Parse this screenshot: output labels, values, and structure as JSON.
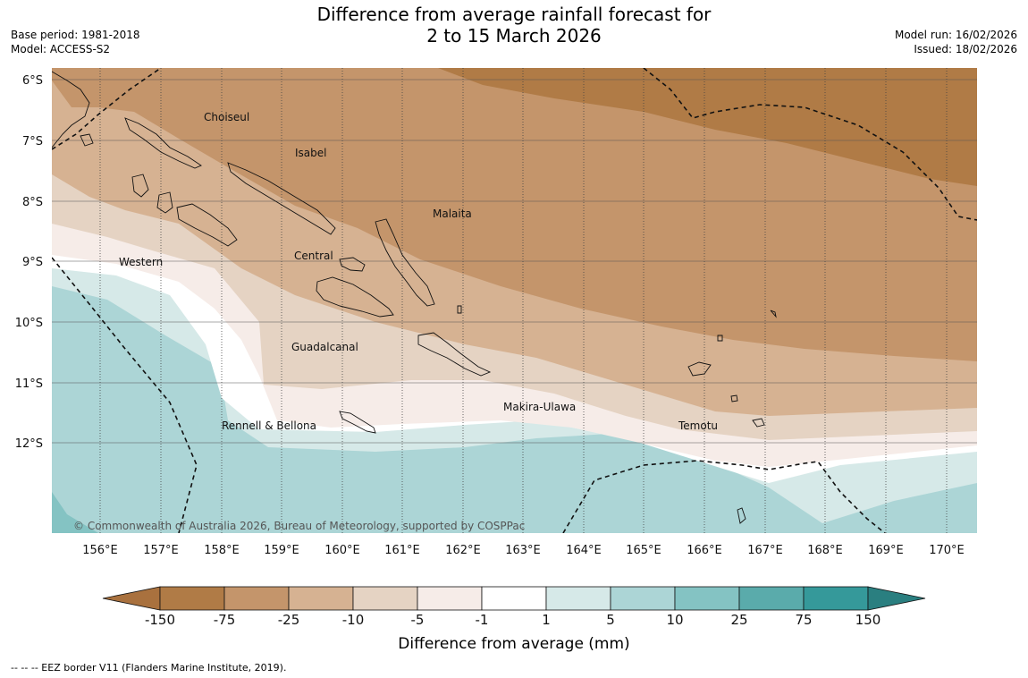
{
  "header": {
    "title_line1": "Difference from average rainfall forecast for",
    "title_line2": "2 to 15 March 2026",
    "base_period": "Base period: 1981-2018",
    "model": "Model: ACCESS-S2",
    "model_run": "Model run: 16/02/2026",
    "issued": "Issued: 18/02/2026"
  },
  "map": {
    "lat_labels": [
      "6°S",
      "7°S",
      "8°S",
      "9°S",
      "10°S",
      "11°S",
      "12°S"
    ],
    "lon_labels": [
      "156°E",
      "157°E",
      "158°E",
      "159°E",
      "160°E",
      "161°E",
      "162°E",
      "163°E",
      "164°E",
      "165°E",
      "166°E",
      "167°E",
      "168°E",
      "169°E",
      "170°E"
    ],
    "places": [
      {
        "name": "Choiseul"
      },
      {
        "name": "Isabel"
      },
      {
        "name": "Malaita"
      },
      {
        "name": "Western"
      },
      {
        "name": "Central"
      },
      {
        "name": "Guadalcanal"
      },
      {
        "name": "Makira-Ulawa"
      },
      {
        "name": "Rennell & Bellona"
      },
      {
        "name": "Temotu"
      }
    ],
    "copyright": "© Commonwealth of Australia 2026, Bureau of Meteorology, supported by COSPPac"
  },
  "colorbar": {
    "labels": [
      "-150",
      "-75",
      "-25",
      "-10",
      "-5",
      "-1",
      "1",
      "5",
      "10",
      "25",
      "75",
      "150"
    ],
    "colors": [
      "#a9713e",
      "#b07b46",
      "#c4956b",
      "#d6b292",
      "#e5d3c3",
      "#f6ece8",
      "#ffffff",
      "#d6e9e8",
      "#acd5d6",
      "#84c3c3",
      "#5aabab",
      "#35999a",
      "#2a7f80"
    ],
    "title": "Difference from average (mm)"
  },
  "footnote": "--  --  -- EEZ border V11 (Flanders Marine Institute, 2019)."
}
